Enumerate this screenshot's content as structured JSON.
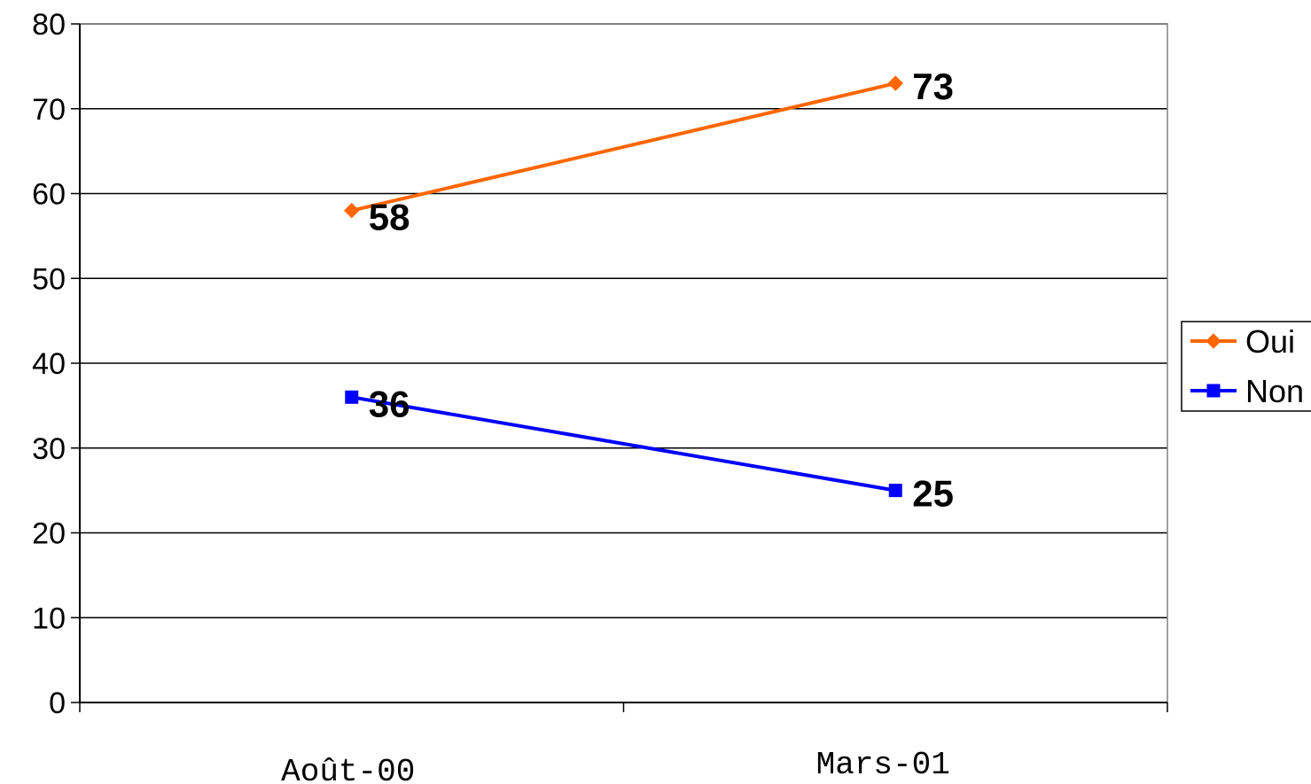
{
  "chart_data": {
    "type": "line",
    "categories": [
      "Août-00",
      "Mars-01"
    ],
    "series": [
      {
        "name": "Oui",
        "values": [
          58,
          73
        ],
        "color": "#ff6600",
        "marker": "diamond"
      },
      {
        "name": "Non",
        "values": [
          36,
          25
        ],
        "color": "#0000ff",
        "marker": "square"
      }
    ],
    "ylim": [
      0,
      80
    ],
    "yticks": [
      0,
      10,
      20,
      30,
      40,
      50,
      60,
      70,
      80
    ],
    "grid": true,
    "data_labels": true,
    "legend_position": "right"
  }
}
